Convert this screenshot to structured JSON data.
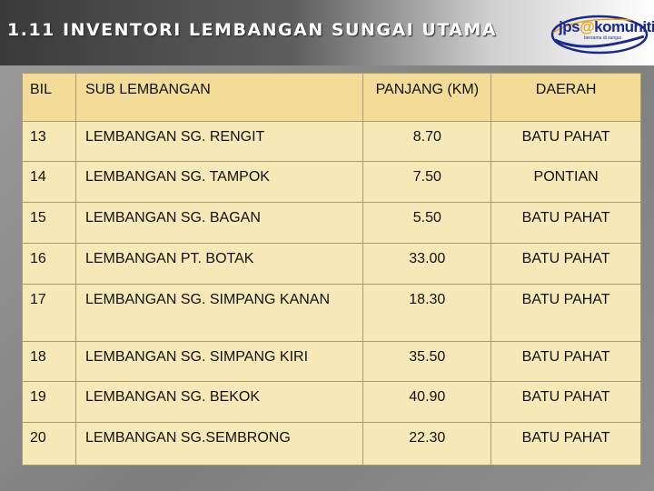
{
  "title": "1.11 INVENTORI LEMBANGAN SUNGAI UTAMA",
  "logo": {
    "jps": "jps",
    "at": "@",
    "kom": "komuniti",
    "sub": "bersama di sungai"
  },
  "table": {
    "headers": {
      "bil": "BIL",
      "sub": "SUB LEMBANGAN",
      "panjang": "PANJANG (KM)",
      "daerah": "DAERAH"
    },
    "rows": [
      {
        "bil": "13",
        "sub": "LEMBANGAN SG. RENGIT",
        "panjang": "8.70",
        "daerah": "BATU PAHAT"
      },
      {
        "bil": "14",
        "sub": "LEMBANGAN SG. TAMPOK",
        "panjang": "7.50",
        "daerah": "PONTIAN"
      },
      {
        "bil": "15",
        "sub": "LEMBANGAN SG. BAGAN",
        "panjang": "5.50",
        "daerah": "BATU PAHAT"
      },
      {
        "bil": "16",
        "sub": "LEMBANGAN PT. BOTAK",
        "panjang": "33.00",
        "daerah": "BATU PAHAT"
      },
      {
        "bil": "17",
        "sub": "LEMBANGAN SG. SIMPANG KANAN",
        "panjang": "18.30",
        "daerah": "BATU PAHAT"
      },
      {
        "bil": "18",
        "sub": "LEMBANGAN SG. SIMPANG KIRI",
        "panjang": "35.50",
        "daerah": "BATU PAHAT"
      },
      {
        "bil": "19",
        "sub": "LEMBANGAN SG. BEKOK",
        "panjang": "40.90",
        "daerah": "BATU PAHAT"
      },
      {
        "bil": "20",
        "sub": "LEMBANGAN SG.SEMBRONG",
        "panjang": "22.30",
        "daerah": "BATU PAHAT"
      }
    ]
  }
}
